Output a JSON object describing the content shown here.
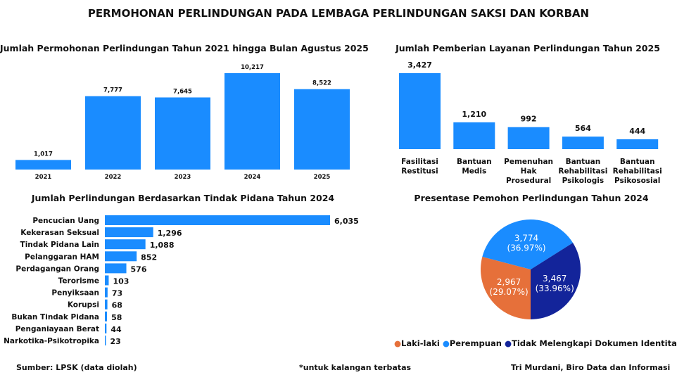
{
  "title": "PERMOHONAN PERLINDUNGAN PADA LEMBAGA PERLINDUNGAN SAKSI DAN KORBAN",
  "footer": {
    "source": "Sumber: LPSK (data diolah)",
    "note": "*untuk kalangan terbatas",
    "author": "Tri Murdani, Biro Data dan Informasi"
  },
  "colors": {
    "bar": "#1a8cff",
    "laki": "#e6703a",
    "perempuan": "#1a8cff",
    "tidak": "#13249a"
  },
  "chart_data": [
    {
      "type": "bar",
      "title": "Jumlah Permohonan Perlindungan Tahun 2021 hingga Bulan Agustus 2025",
      "categories": [
        "2021",
        "2022",
        "2023",
        "2024",
        "2025"
      ],
      "values": [
        1017,
        7777,
        7645,
        10217,
        8522
      ],
      "labels": [
        "1,017",
        "7,777",
        "7,645",
        "10,217",
        "8,522"
      ]
    },
    {
      "type": "bar",
      "title": "Jumlah Pemberian Layanan Perlindungan Tahun 2025",
      "categories": [
        [
          "Fasilitasi",
          "Restitusi"
        ],
        [
          "Bantuan",
          "Medis"
        ],
        [
          "Pemenuhan",
          "Hak",
          "Prosedural"
        ],
        [
          "Bantuan",
          "Rehabilitasi",
          "Psikologis"
        ],
        [
          "Bantuan",
          "Rehabilitasi",
          "Psikososial"
        ]
      ],
      "values": [
        3427,
        1210,
        992,
        564,
        444
      ],
      "labels": [
        "3,427",
        "1,210",
        "992",
        "564",
        "444"
      ]
    },
    {
      "type": "bar",
      "orientation": "horizontal",
      "title": "Jumlah Perlindungan Berdasarkan Tindak Pidana Tahun 2024",
      "categories": [
        "Pencucian Uang",
        "Kekerasan Seksual",
        "Tindak Pidana Lain",
        "Pelanggaran HAM",
        "Perdagangan Orang",
        "Terorisme",
        "Penyiksaan",
        "Korupsi",
        "Bukan Tindak Pidana",
        "Penganiayaan Berat",
        "Narkotika-Psikotropika"
      ],
      "values": [
        6035,
        1296,
        1088,
        852,
        576,
        103,
        73,
        68,
        58,
        44,
        23
      ],
      "labels": [
        "6,035",
        "1,296",
        "1,088",
        "852",
        "576",
        "103",
        "73",
        "68",
        "58",
        "44",
        "23"
      ]
    },
    {
      "type": "pie",
      "title": "Presentase Pemohon Perlindungan Tahun 2024",
      "slices": [
        {
          "name": "Laki-laki",
          "value": 2967,
          "label": "2,967",
          "pct": "(29.07%)"
        },
        {
          "name": "Perempuan",
          "value": 3774,
          "label": "3,774",
          "pct": "(36.97%)"
        },
        {
          "name": "Tidak Melengkapi Dokumen Identitas",
          "value": 3467,
          "label": "3,467",
          "pct": "(33.96%)"
        }
      ],
      "legend": "bottom"
    }
  ]
}
